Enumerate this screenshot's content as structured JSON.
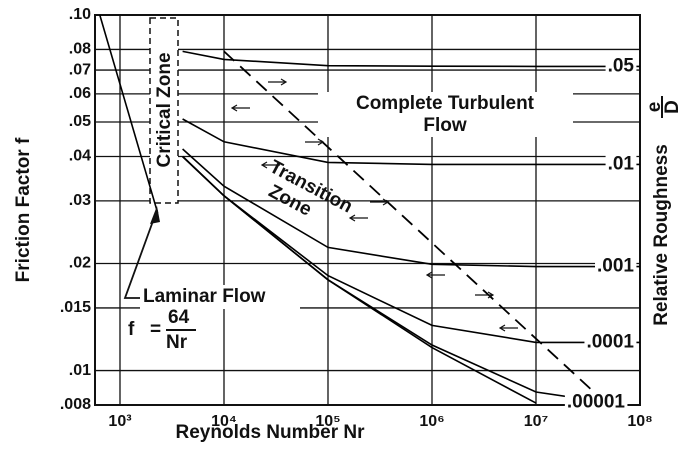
{
  "chart_data": {
    "type": "line",
    "x_label": "Reynolds Number Nr",
    "y_label": "Friction Factor f",
    "y2_label": "Relative Roughness",
    "y2_label_fraction": [
      "e",
      "D"
    ],
    "annotations": [
      "Critical Zone",
      "Complete Turbulent Flow",
      "Transition Zone",
      "Laminar Flow"
    ],
    "formula": [
      "f",
      "=",
      "64",
      "Nr"
    ],
    "log_x": true,
    "log_y": true,
    "grid": true,
    "xlim": [
      575,
      100000000
    ],
    "ylim": [
      0.008,
      0.1
    ],
    "xticks": [
      {
        "value": 1000,
        "label": "10³"
      },
      {
        "value": 10000,
        "label": "10⁴"
      },
      {
        "value": 100000,
        "label": "10⁵"
      },
      {
        "value": 1000000,
        "label": "10⁶"
      },
      {
        "value": 10000000,
        "label": "10⁷"
      },
      {
        "value": 100000000,
        "label": "10⁸"
      }
    ],
    "yticks": [
      {
        "value": 0.1,
        "label": ".10"
      },
      {
        "value": 0.08,
        "label": ".08"
      },
      {
        "value": 0.07,
        "label": ".07"
      },
      {
        "value": 0.06,
        "label": ".06"
      },
      {
        "value": 0.05,
        "label": ".05"
      },
      {
        "value": 0.04,
        "label": ".04"
      },
      {
        "value": 0.03,
        "label": ".03"
      },
      {
        "value": 0.02,
        "label": ".02"
      },
      {
        "value": 0.015,
        "label": ".015"
      },
      {
        "value": 0.01,
        "label": ".01"
      },
      {
        "value": 0.008,
        "label": ".008"
      }
    ],
    "series": [
      {
        "color": "#000000",
        "x": [
          640,
          2300
        ],
        "values": [
          0.1,
          0.0278
        ]
      },
      {
        "name": ".05",
        "color": "#000000",
        "x": [
          4000,
          10000,
          100000,
          1000000,
          10000000,
          100000000
        ],
        "values": [
          0.079,
          0.075,
          0.072,
          0.0718,
          0.0717,
          0.0717
        ]
      },
      {
        "name": ".01",
        "color": "#000000",
        "x": [
          4000,
          10000,
          100000,
          1000000,
          10000000,
          100000000
        ],
        "values": [
          0.051,
          0.044,
          0.0385,
          0.038,
          0.038,
          0.038
        ]
      },
      {
        "name": ".001",
        "color": "#000000",
        "x": [
          4000,
          10000,
          100000,
          1000000,
          10000000,
          100000000
        ],
        "values": [
          0.042,
          0.033,
          0.0222,
          0.0199,
          0.0196,
          0.0196
        ]
      },
      {
        "name": ".0001",
        "color": "#000000",
        "x": [
          4000,
          10000,
          100000,
          1000000,
          10000000,
          100000000
        ],
        "values": [
          0.04,
          0.031,
          0.0185,
          0.0134,
          0.012,
          0.012
        ]
      },
      {
        "name": ".00001",
        "color": "#000000",
        "x": [
          4000,
          10000,
          100000,
          1000000,
          10000000,
          30000000
        ],
        "values": [
          0.04,
          0.031,
          0.018,
          0.0118,
          0.0087,
          0.0083
        ]
      },
      {
        "color": "#000000",
        "x": [
          4000,
          10000,
          100000,
          1000000,
          10000000
        ],
        "values": [
          0.04,
          0.031,
          0.018,
          0.0116,
          0.0081
        ]
      },
      {
        "color": "#000000",
        "dashed": true,
        "x": [
          10000,
          45000000
        ],
        "values": [
          0.079,
          0.0082
        ]
      }
    ]
  }
}
